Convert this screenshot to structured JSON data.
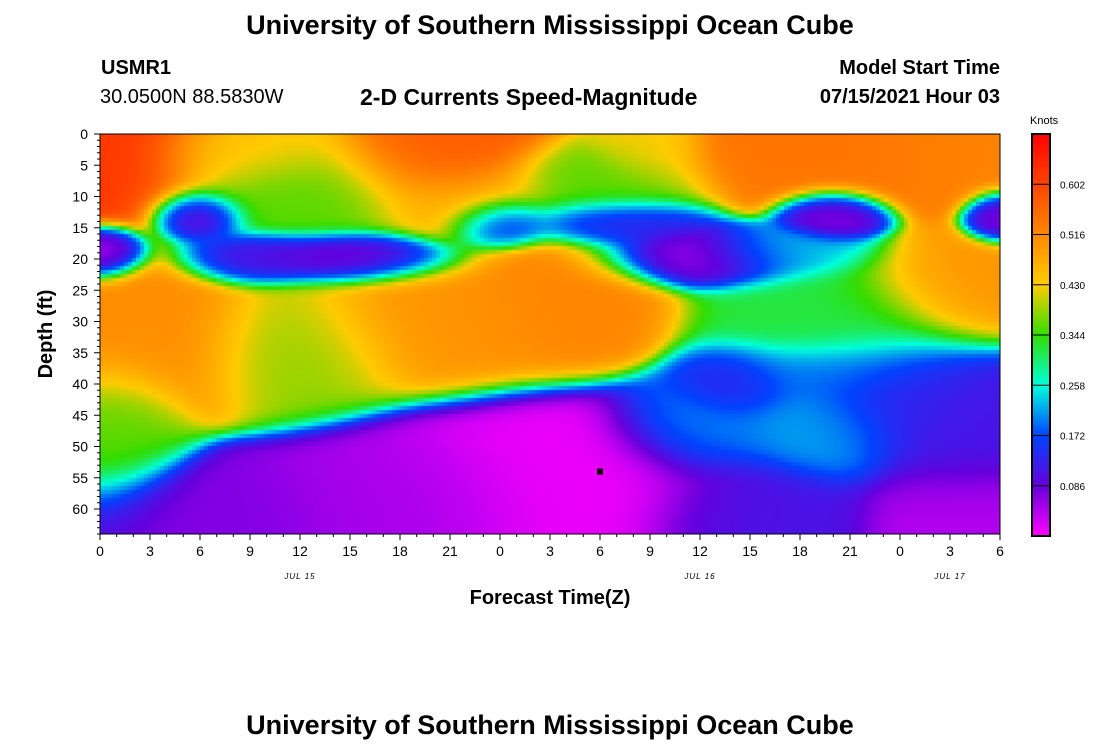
{
  "page": {
    "title": "University of Southern Mississippi Ocean Cube",
    "footer_title": "University of Southern Mississippi Ocean Cube"
  },
  "header": {
    "station": "USMR1",
    "coords": "30.0500N  88.5830W",
    "subtitle": "2-D Currents Speed-Magnitude",
    "start_label": "Model Start Time",
    "start_value": "07/15/2021 Hour 03"
  },
  "chart_data": {
    "type": "heatmap",
    "title": "2-D Currents Speed-Magnitude",
    "xlabel": "Forecast Time(Z)",
    "ylabel": "Depth (ft)",
    "x_tick_labels": [
      "0",
      "3",
      "6",
      "9",
      "12",
      "15",
      "18",
      "21",
      "0",
      "3",
      "6",
      "9",
      "12",
      "15",
      "18",
      "21",
      "0",
      "3",
      "6"
    ],
    "date_labels": [
      {
        "label": "JUL 15",
        "hour": 12
      },
      {
        "label": "JUL 16",
        "hour": 36
      },
      {
        "label": "JUL 17",
        "hour": 51
      }
    ],
    "xlim": [
      0,
      54
    ],
    "y_tick_labels": [
      "0",
      "5",
      "10",
      "15",
      "20",
      "25",
      "30",
      "35",
      "40",
      "45",
      "50",
      "55",
      "60"
    ],
    "ylim": [
      0,
      64
    ],
    "colorbar": {
      "title": "Knots",
      "ticks": [
        "0.602",
        "0.516",
        "0.430",
        "0.344",
        "0.258",
        "0.172",
        "0.086"
      ],
      "min": 0.0,
      "max": 0.688
    },
    "marker": {
      "hour": 30,
      "depth_ft": 54
    },
    "features": [
      {
        "hour": 0,
        "depth_ft": 4,
        "speed": 0.62,
        "sx": 3.5,
        "sy": 5
      },
      {
        "hour": 20,
        "depth_ft": 4,
        "speed": 0.57,
        "sx": 3,
        "sy": 4
      },
      {
        "hour": 44,
        "depth_ft": 3,
        "speed": 0.54,
        "sx": 5,
        "sy": 4
      },
      {
        "hour": 52,
        "depth_ft": 3,
        "speed": 0.52,
        "sx": 3,
        "sy": 4
      },
      {
        "hour": 9,
        "depth_ft": 3,
        "speed": 0.44,
        "sx": 3,
        "sy": 3
      },
      {
        "hour": 33,
        "depth_ft": 2,
        "speed": 0.42,
        "sx": 1.6,
        "sy": 3
      },
      {
        "hour": 22,
        "depth_ft": 11,
        "speed": 0.46,
        "sx": 2.5,
        "sy": 3
      },
      {
        "hour": 12,
        "depth_ft": 9,
        "speed": 0.36,
        "sx": 4,
        "sy": 4
      },
      {
        "hour": 30,
        "depth_ft": 8,
        "speed": 0.36,
        "sx": 3,
        "sy": 3
      },
      {
        "hour": 0,
        "depth_ft": 19,
        "speed": 0.03,
        "sx": 1.3,
        "sy": 2
      },
      {
        "hour": 6,
        "depth_ft": 13,
        "speed": 0.05,
        "sx": 1.3,
        "sy": 2
      },
      {
        "hour": 9,
        "depth_ft": 20,
        "speed": 0.1,
        "sx": 2,
        "sy": 2
      },
      {
        "hour": 15,
        "depth_ft": 20,
        "speed": 0.06,
        "sx": 3,
        "sy": 2
      },
      {
        "hour": 24,
        "depth_ft": 14,
        "speed": 0.09,
        "sx": 1.5,
        "sy": 2
      },
      {
        "hour": 31,
        "depth_ft": 14,
        "speed": 0.12,
        "sx": 2.5,
        "sy": 2
      },
      {
        "hour": 36,
        "depth_ft": 20,
        "speed": 0.05,
        "sx": 3,
        "sy": 2.2
      },
      {
        "hour": 44,
        "depth_ft": 13,
        "speed": 0.06,
        "sx": 1.5,
        "sy": 2
      },
      {
        "hour": 54,
        "depth_ft": 13,
        "speed": 0.06,
        "sx": 1,
        "sy": 2
      },
      {
        "hour": 41,
        "depth_ft": 19,
        "speed": 0.23,
        "sx": 2.5,
        "sy": 2
      },
      {
        "hour": 3,
        "depth_ft": 32,
        "speed": 0.51,
        "sx": 3.5,
        "sy": 6
      },
      {
        "hour": 20,
        "depth_ft": 30,
        "speed": 0.5,
        "sx": 4,
        "sy": 5
      },
      {
        "hour": 28,
        "depth_ft": 27,
        "speed": 0.52,
        "sx": 3,
        "sy": 5
      },
      {
        "hour": 52,
        "depth_ft": 25,
        "speed": 0.5,
        "sx": 3,
        "sy": 4
      },
      {
        "hour": 12,
        "depth_ft": 34,
        "speed": 0.38,
        "sx": 3,
        "sy": 5
      },
      {
        "hour": 44,
        "depth_ft": 30,
        "speed": 0.32,
        "sx": 4,
        "sy": 5
      },
      {
        "hour": 38,
        "depth_ft": 40,
        "speed": 0.12,
        "sx": 1.8,
        "sy": 3
      },
      {
        "hour": 36,
        "depth_ft": 47,
        "speed": 0.21,
        "sx": 2.5,
        "sy": 4
      },
      {
        "hour": 43,
        "depth_ft": 47,
        "speed": 0.22,
        "sx": 2.5,
        "sy": 4
      },
      {
        "hour": 43,
        "depth_ft": 38,
        "speed": 0.18,
        "sx": 3,
        "sy": 2.5
      },
      {
        "hour": 48,
        "depth_ft": 42,
        "speed": 0.13,
        "sx": 3,
        "sy": 5
      },
      {
        "hour": 53,
        "depth_ft": 48,
        "speed": 0.11,
        "sx": 3,
        "sy": 6
      },
      {
        "hour": 39,
        "depth_ft": 60,
        "speed": 0.11,
        "sx": 3,
        "sy": 4
      },
      {
        "hour": 28,
        "depth_ft": 55,
        "speed": 0.01,
        "sx": 5,
        "sy": 6
      },
      {
        "hour": 18,
        "depth_ft": 58,
        "speed": 0.05,
        "sx": 4,
        "sy": 5
      },
      {
        "hour": 6,
        "depth_ft": 60,
        "speed": 0.07,
        "sx": 4,
        "sy": 4
      },
      {
        "hour": 1,
        "depth_ft": 48,
        "speed": 0.36,
        "sx": 2,
        "sy": 6
      },
      {
        "hour": 53,
        "depth_ft": 60,
        "speed": 0.04,
        "sx": 3,
        "sy": 4
      }
    ]
  }
}
